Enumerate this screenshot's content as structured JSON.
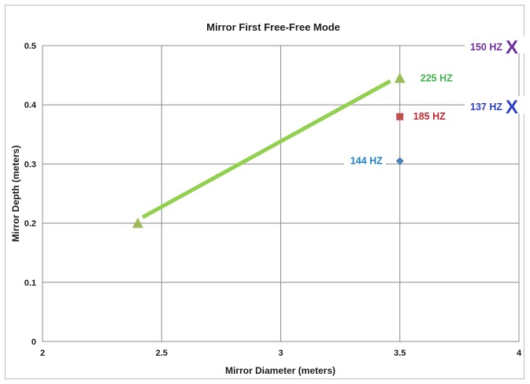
{
  "chart_data": {
    "type": "scatter",
    "title": "Mirror First Free-Free Mode",
    "xlabel": "Mirror Diameter (meters)",
    "ylabel": "Mirror Depth (meters)",
    "xlim": [
      2,
      4
    ],
    "ylim": [
      0,
      0.5
    ],
    "xticks": [
      "2",
      "2.5",
      "3",
      "3.5",
      "4"
    ],
    "yticks": [
      "0",
      "0.1",
      "0.2",
      "0.3",
      "0.4",
      "0.5"
    ],
    "grid": true,
    "points": [
      {
        "x": 3.5,
        "y": 0.305,
        "marker": "diamond",
        "color": "#4a7ebb",
        "label": "144 HZ",
        "label_color": "#1f7fc4"
      },
      {
        "x": 3.5,
        "y": 0.38,
        "marker": "square",
        "color": "#c0504d",
        "label": "185 HZ",
        "label_color": "#c0272d"
      },
      {
        "x": 3.5,
        "y": 0.445,
        "marker": "triangle",
        "color": "#9bbb59",
        "label": "225 HZ",
        "label_color": "#3db54a"
      },
      {
        "x": 2.4,
        "y": 0.2,
        "marker": "triangle",
        "color": "#9bbb59",
        "label": "",
        "label_color": "#3db54a"
      }
    ],
    "trend_line": {
      "from": [
        2.42,
        0.21
      ],
      "to": [
        3.46,
        0.44
      ],
      "color": "#92d050"
    },
    "off_chart": [
      {
        "label": "150 HZ",
        "mark": "X",
        "y": 0.5,
        "color": "#7030a0"
      },
      {
        "label": "137 HZ",
        "mark": "X",
        "y": 0.4,
        "color": "#2e3fc8"
      }
    ]
  }
}
